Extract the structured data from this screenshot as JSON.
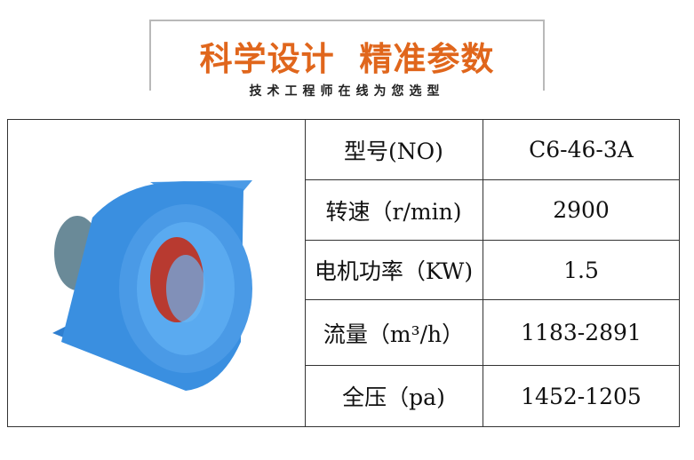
{
  "header": {
    "title": "科学设计  精准参数",
    "subtitle": "技术工程师在线为您选型",
    "title_color": "#e0661c"
  },
  "product_image": {
    "subject": "blue centrifugal fan",
    "color": "#3a8fe0"
  },
  "specs": [
    {
      "label": "型号(NO)",
      "value": "C6-46-3A"
    },
    {
      "label": "转速（r/min)",
      "value": "2900"
    },
    {
      "label": "电机功率（KW)",
      "value": "1.5"
    },
    {
      "label": "流量（m³/h）",
      "value": "1183-2891"
    },
    {
      "label": "全压（pa)",
      "value": "1452-1205"
    }
  ]
}
